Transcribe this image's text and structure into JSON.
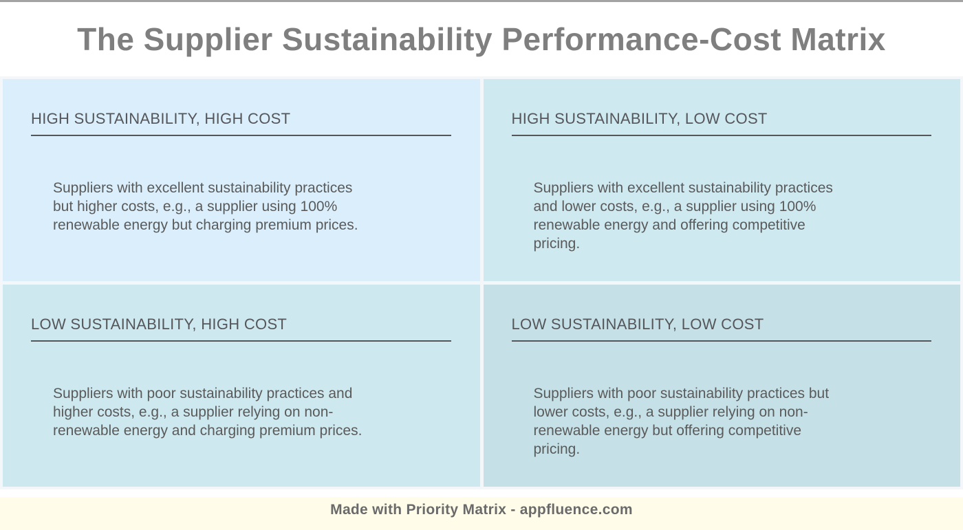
{
  "title": "The Supplier Sustainability Performance-Cost Matrix",
  "quadrants": [
    {
      "id": "high-sustainability-high-cost",
      "header": "HIGH SUSTAINABILITY, HIGH COST",
      "body": "Suppliers with excellent sustainability practices\nbut higher costs, e.g., a supplier using 100%\nrenewable energy but charging premium prices.",
      "bg": "#daeffb"
    },
    {
      "id": "high-sustainability-low-cost",
      "header": "HIGH SUSTAINABILITY, LOW COST",
      "body": "Suppliers with excellent sustainability practices\nand lower costs, e.g., a supplier using 100%\nrenewable energy and offering competitive\npricing.",
      "bg": "#cfe9f1"
    },
    {
      "id": "low-sustainability-high-cost",
      "header": "LOW SUSTAINABILITY, HIGH COST",
      "body": "Suppliers with poor sustainability practices and\nhigher costs, e.g., a supplier relying on non-\nrenewable energy and charging premium prices.",
      "bg": "#cde8ee"
    },
    {
      "id": "low-sustainability-low-cost",
      "header": "LOW SUSTAINABILITY, LOW COST",
      "body": "Suppliers with poor sustainability practices but\nlower costs, e.g., a supplier relying on non-\nrenewable energy but offering competitive\npricing.",
      "bg": "#c5e1e7"
    }
  ],
  "footer": {
    "text": "Made with Priority Matrix - appfluence.com"
  },
  "colors": {
    "title_text": "#7f7f7f",
    "quadrant_header_text": "#55565a",
    "quadrant_body_text": "#5a5a5a",
    "grid_gap": "#f3f7f9",
    "footer_bg": "#fffde9",
    "footer_text": "#6a6a6a",
    "top_border": "#a3a3a3"
  }
}
